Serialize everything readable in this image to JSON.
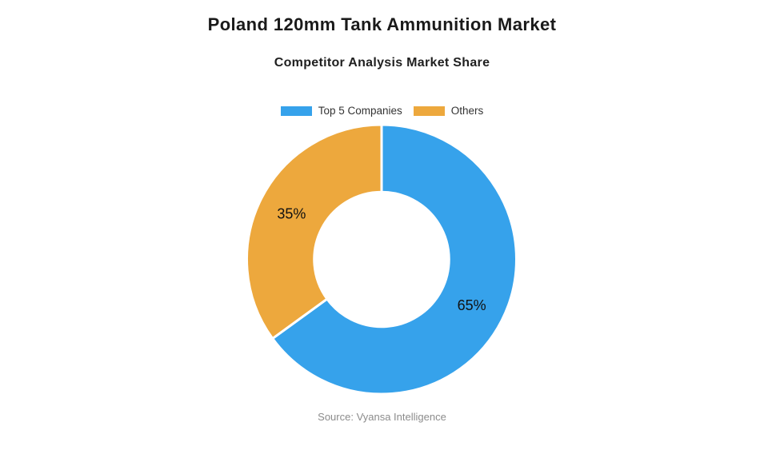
{
  "header": {
    "title": "Poland 120mm Tank Ammunition Market",
    "subtitle": "Competitor Analysis Market Share"
  },
  "footer": {
    "source": "Source: Vyansa Intelligence"
  },
  "chart_data": {
    "type": "pie",
    "variant": "donut",
    "title": "Poland 120mm Tank Ammunition Market",
    "subtitle": "Competitor Analysis Market Share",
    "categories": [
      "Top 5 Companies",
      "Others"
    ],
    "values": [
      65,
      35
    ],
    "labels": [
      "65%",
      "35%"
    ],
    "colors": [
      "#36A2EB",
      "#EDA83D"
    ],
    "border_color": "#ffffff",
    "border_width": 3,
    "start_angle_deg": 0,
    "direction": "clockwise",
    "inner_radius_ratio": 0.5,
    "legend_position": "top",
    "label_color": "#111111",
    "source": "Source: Vyansa Intelligence"
  }
}
